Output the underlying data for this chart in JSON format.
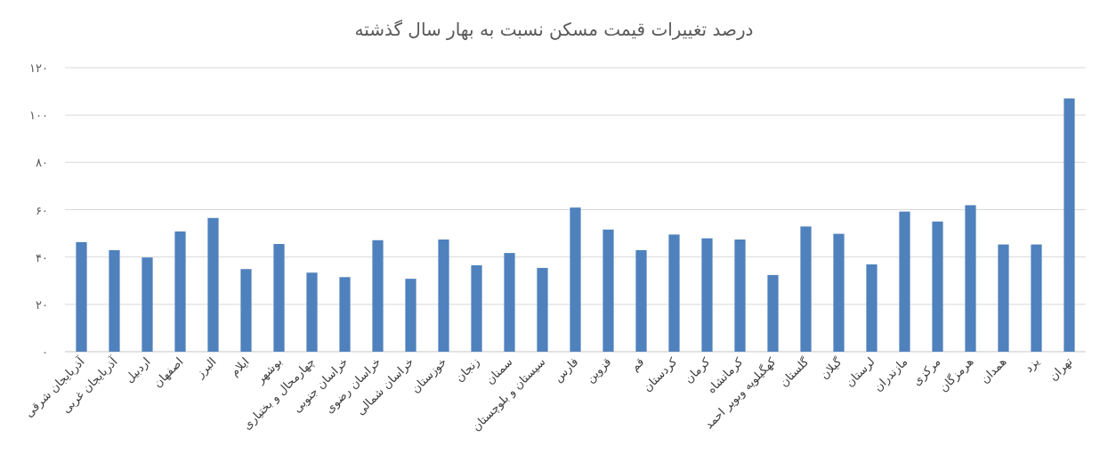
{
  "chart_data": {
    "type": "bar",
    "title": "درصد تغییرات قیمت مسکن نسبت به بهار سال گذشته",
    "categories": [
      "آذربایجان شرقی",
      "آذربایجان غربی",
      "اردبیل",
      "اصفهان",
      "البرز",
      "ایلام",
      "بوشهر",
      "چهارمحال و بختیاری",
      "خراسان جنوبی",
      "خراسان رضوی",
      "خراسان شمالی",
      "خوزستان",
      "زنجان",
      "سمنان",
      "سیستان و بلوچستان",
      "فارس",
      "قزوین",
      "قم",
      "کردستان",
      "کرمان",
      "کرمانشاه",
      "کهگیلویه وبویر احمد",
      "گلستان",
      "گیلان",
      "لرستان",
      "مازندران",
      "مرکزی",
      "هرمزگان",
      "همدان",
      "یزد",
      "تهران"
    ],
    "values": [
      46.3,
      42.9,
      39.8,
      50.8,
      56.5,
      34.9,
      45.5,
      33.4,
      31.5,
      47.1,
      30.8,
      47.4,
      36.5,
      41.7,
      35.4,
      60.9,
      51.6,
      42.9,
      49.5,
      47.9,
      47.4,
      32.4,
      52.9,
      49.8,
      36.9,
      59.2,
      55.0,
      61.9,
      45.3,
      45.3,
      107.0
    ],
    "color": "#4f81bd",
    "ylim": [
      0,
      120
    ],
    "yticks": [
      {
        "value": 0,
        "label": "۰"
      },
      {
        "value": 20,
        "label": "۲۰"
      },
      {
        "value": 40,
        "label": "۴۰"
      },
      {
        "value": 60,
        "label": "۶۰"
      },
      {
        "value": 80,
        "label": "۸۰"
      },
      {
        "value": 100,
        "label": "۱۰۰"
      },
      {
        "value": 120,
        "label": "۱۲۰"
      }
    ],
    "grid": "y"
  }
}
